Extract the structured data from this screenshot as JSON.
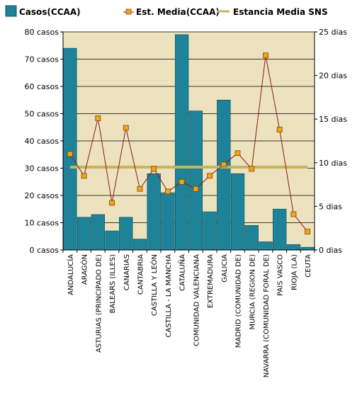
{
  "chart_data": {
    "type": "bar",
    "colors": {
      "plot_background": "#ECE2BE",
      "bars": "#1E8399",
      "line": "#8B1A1A",
      "marker_fill": "#F7A21B",
      "reference_line": "#C8B45A",
      "grid": "#000000"
    },
    "legend": {
      "placement": "top",
      "items": [
        {
          "label": "Casos(CCAA)",
          "icon": "bar-swatch"
        },
        {
          "label": "Est.  Media(CCAA)",
          "icon": "line-square-marker"
        },
        {
          "label": "Estancia Media SNS",
          "icon": "flat-line"
        }
      ]
    },
    "left_axis": {
      "ylim": [
        0,
        80
      ],
      "ticks": [
        "0 casos",
        "10 casos",
        "20 casos",
        "30 casos",
        "40 casos",
        "50 casos",
        "60 casos",
        "70 casos",
        "80 casos"
      ],
      "tick_values": [
        0,
        10,
        20,
        30,
        40,
        50,
        60,
        70,
        80
      ]
    },
    "right_axis": {
      "ylim": [
        0,
        25
      ],
      "ticks": [
        "0 dias",
        "5 dias",
        "10 dias",
        "15 dias",
        "20 dias",
        "25 dias"
      ],
      "tick_values": [
        0,
        5,
        10,
        15,
        20,
        25
      ]
    },
    "grid": true,
    "categories": [
      "ANDALUCÍA",
      "ARAGÓN",
      "ASTURIAS (PRINCIPADO DE)",
      "BALEARS (ILLES)",
      "CANARIAS",
      "CANTABRIA",
      "CASTILLA Y LEÓN",
      "CASTILLA - LA MANCHA",
      "CATALUÑA",
      "COMUNIDAD VALENCIANA",
      "EXTREMADURA",
      "GALICIA",
      "MADRID (COMUNIDAD DE)",
      "MURCIA (REGION DE)",
      "NAVARRA (COMUNIDAD FORAL DE)",
      "PAIS VASCO",
      "RIOJA (LA)",
      "CEUTA"
    ],
    "series": [
      {
        "name": "Casos(CCAA)",
        "kind": "bar",
        "axis": "left",
        "values": [
          74,
          12,
          13,
          7,
          12,
          4,
          28,
          21,
          79,
          51,
          14,
          55,
          28,
          9,
          3,
          15,
          2,
          1
        ]
      },
      {
        "name": "Est.  Media(CCAA)",
        "kind": "line",
        "axis": "right",
        "values": [
          11,
          8.5,
          15.1,
          5.4,
          14,
          7,
          9.3,
          6.7,
          7.8,
          7,
          8.5,
          9.8,
          11.1,
          9.3,
          22.3,
          13.8,
          4.1,
          2.1
        ]
      },
      {
        "name": "Estancia Media SNS",
        "kind": "reference",
        "axis": "right",
        "value": 9.5
      }
    ]
  }
}
